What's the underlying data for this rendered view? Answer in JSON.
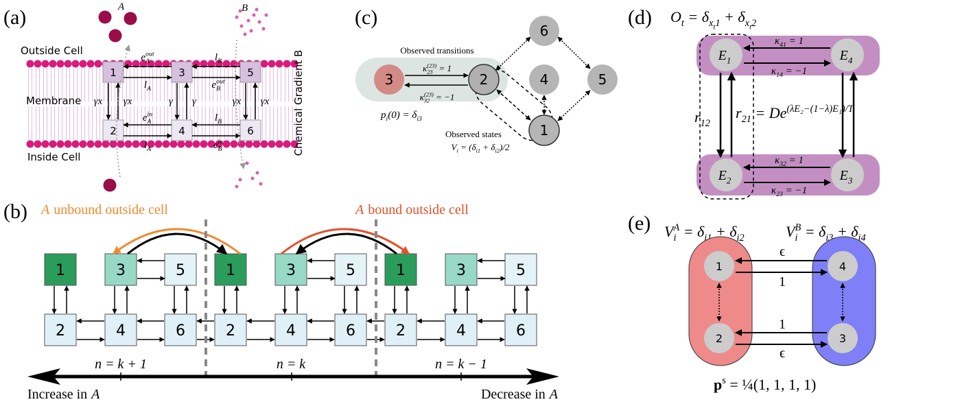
{
  "panel_a": {
    "label": "(a)",
    "species_a": "A",
    "species_b": "B",
    "outside": "Outside Cell",
    "membrane": "Membrane",
    "inside": "Inside Cell",
    "gradient": "Chemical Gradient B",
    "states": [
      "1",
      "2",
      "3",
      "4",
      "5",
      "6"
    ],
    "rates": {
      "e_a_out": [
        "e",
        {
          "sub": "A",
          "sup": "out"
        }
      ],
      "l_a_top": [
        "l",
        {
          "sub": "A"
        }
      ],
      "l_b_top": [
        "l",
        {
          "sub": "B"
        }
      ],
      "e_b_out": [
        "e",
        {
          "sub": "B",
          "sup": "out"
        }
      ],
      "gamma_x_1": "γx",
      "gamma_x_2": "γx",
      "gamma_1": "γ",
      "gamma_2": "γ",
      "gamma_x_3": "γx",
      "gamma_x_4": "γx",
      "e_a_in": [
        "e",
        {
          "sub": "A",
          "sup": "in"
        }
      ],
      "l_a_bottom": [
        "l",
        {
          "sub": "A"
        }
      ],
      "l_b_bottom": [
        "l",
        {
          "sub": "B"
        }
      ],
      "e_b_in": [
        "e",
        {
          "sub": "B",
          "sup": "in"
        }
      ]
    }
  },
  "panel_b": {
    "label": "(b)",
    "unbound": {
      "species": "A",
      "text": "unbound outside cell"
    },
    "bound": {
      "species": "A",
      "text": "bound outside cell"
    },
    "sections": [
      {
        "top": [
          "1",
          "3",
          "5"
        ],
        "bottom": [
          "2",
          "4",
          "6"
        ],
        "n": "n = k + 1"
      },
      {
        "top": [
          "1",
          "3",
          "5"
        ],
        "bottom": [
          "2",
          "4",
          "6"
        ],
        "n": "n = k"
      },
      {
        "top": [
          "1",
          "3",
          "5"
        ],
        "bottom": [
          "2",
          "4",
          "6"
        ],
        "n": "n = k − 1"
      }
    ],
    "increase": {
      "text": "Increase in",
      "species": "A"
    },
    "decrease": {
      "text": "Decrease in",
      "species": "A"
    }
  },
  "panel_c": {
    "label": "(c)",
    "nodes": [
      "3",
      "2",
      "6",
      "4",
      "5",
      "1"
    ],
    "observed_transitions": "Observed transitions",
    "kappa_23": [
      "κ",
      {
        "sub": "23",
        "sup": "(23)"
      },
      " = 1"
    ],
    "kappa_32": [
      "κ",
      {
        "sub": "32",
        "sup": "(23)"
      },
      " = −1"
    ],
    "initial": [
      "p",
      {
        "sub": "i"
      },
      "(0) = δ",
      {
        "sub": "i3"
      }
    ],
    "observed_states": "Observed states",
    "observable": [
      "V",
      {
        "sub": "i"
      },
      " = (δ",
      {
        "sub": "i1"
      },
      " + δ",
      {
        "sub": "i2"
      },
      ")/2"
    ]
  },
  "panel_d": {
    "label": "(d)",
    "observable": [
      "O",
      {
        "sub": "t"
      },
      " = δ",
      {
        "sub": "x"
      },
      {
        "subsub": "t"
      },
      {
        "sub": "1"
      },
      " + δ",
      {
        "sub": "x"
      },
      {
        "subsub": "t"
      },
      {
        "sub": "2"
      }
    ],
    "nodes": [
      [
        "E",
        {
          "sub": "1"
        }
      ],
      [
        "E",
        {
          "sub": "4"
        }
      ],
      [
        "E",
        {
          "sub": "2"
        }
      ],
      [
        "E",
        {
          "sub": "3"
        }
      ]
    ],
    "kappa_41": [
      "κ",
      {
        "sub": "41"
      },
      " = 1"
    ],
    "kappa_14": [
      "κ",
      {
        "sub": "14"
      },
      " = −1"
    ],
    "kappa_32": [
      "κ",
      {
        "sub": "32"
      },
      " = 1"
    ],
    "kappa_23": [
      "κ",
      {
        "sub": "23"
      },
      " = −1"
    ],
    "r_12": [
      "r",
      {
        "sub": "12"
      }
    ],
    "r_21": [
      "r",
      {
        "sub": "21"
      },
      " = De",
      {
        "sup": "(λE₂−(1−λ)E₁)/T"
      }
    ]
  },
  "panel_e": {
    "label": "(e)",
    "observable_a": [
      "V",
      {
        "sub": "i",
        "sup": "A"
      },
      " = δ",
      {
        "sub": "i1"
      },
      " + δ",
      {
        "sub": "i2"
      }
    ],
    "observable_b": [
      "V",
      {
        "sub": "i",
        "sup": "B"
      },
      " = δ",
      {
        "sub": "i3"
      },
      " + δ",
      {
        "sub": "i4"
      }
    ],
    "nodes": [
      "1",
      "4",
      "2",
      "3"
    ],
    "rates": [
      "ϵ",
      "1",
      "1",
      "ϵ"
    ],
    "stationary": [
      "p",
      {
        "sup": "s"
      },
      " = ¼(1, 1, 1, 1)"
    ]
  }
}
